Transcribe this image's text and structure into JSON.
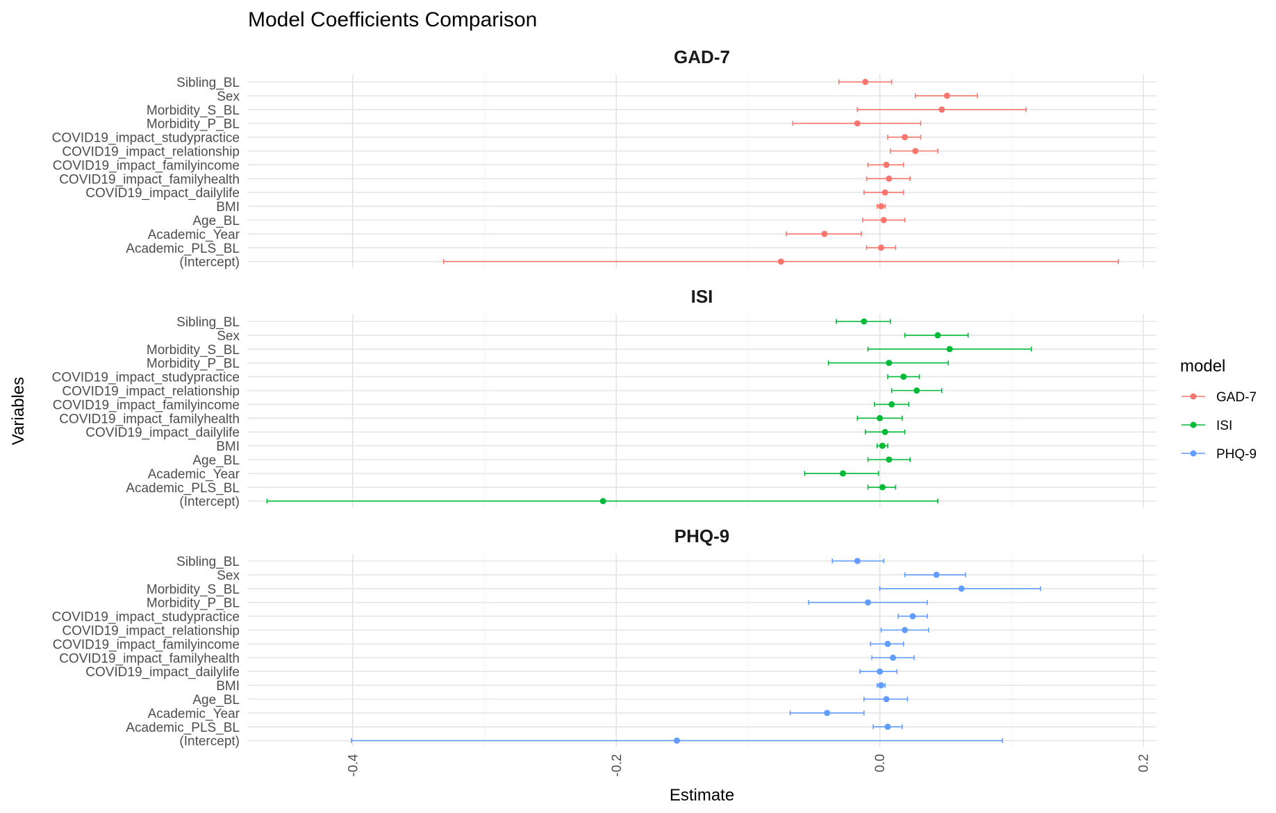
{
  "chart_data": {
    "type": "scatter",
    "title": "Model Coefficients Comparison",
    "xlabel": "Estimate",
    "ylabel": "Variables",
    "xlim": [
      -0.48,
      0.21
    ],
    "x_ticks": [
      -0.4,
      -0.2,
      0.0,
      0.2
    ],
    "x_tick_labels": [
      "-0.4",
      "-0.2",
      "0.0",
      "0.2"
    ],
    "x_minor_ticks": [
      -0.3,
      -0.1,
      0.1
    ],
    "grid": true,
    "legend": {
      "title": "model",
      "placement": "right"
    },
    "variables": [
      "Sibling_BL",
      "Sex",
      "Morbidity_S_BL",
      "Morbidity_P_BL",
      "COVID19_impact_studypractice",
      "COVID19_impact_relationship",
      "COVID19_impact_familyincome",
      "COVID19_impact_familyhealth",
      "COVID19_impact_dailylife",
      "BMI",
      "Age_BL",
      "Academic_Year",
      "Academic_PLS_BL",
      "(Intercept)"
    ],
    "series": [
      {
        "name": "GAD-7",
        "color": "#F8766D",
        "estimate": [
          -0.011,
          0.051,
          0.047,
          -0.017,
          0.019,
          0.027,
          0.005,
          0.007,
          0.004,
          0.001,
          0.003,
          -0.042,
          0.001,
          -0.075
        ],
        "ci_low": [
          -0.031,
          0.027,
          -0.017,
          -0.066,
          0.006,
          0.008,
          -0.009,
          -0.01,
          -0.012,
          -0.002,
          -0.013,
          -0.071,
          -0.01,
          -0.331
        ],
        "ci_high": [
          0.009,
          0.074,
          0.111,
          0.031,
          0.031,
          0.044,
          0.018,
          0.023,
          0.018,
          0.004,
          0.019,
          -0.014,
          0.012,
          0.181
        ]
      },
      {
        "name": "ISI",
        "color": "#00BA38",
        "estimate": [
          -0.012,
          0.044,
          0.053,
          0.007,
          0.018,
          0.028,
          0.009,
          0.0,
          0.004,
          0.002,
          0.007,
          -0.028,
          0.002,
          -0.21
        ],
        "ci_low": [
          -0.033,
          0.019,
          -0.009,
          -0.039,
          0.006,
          0.009,
          -0.004,
          -0.017,
          -0.011,
          -0.002,
          -0.009,
          -0.057,
          -0.009,
          -0.465
        ],
        "ci_high": [
          0.008,
          0.067,
          0.115,
          0.052,
          0.03,
          0.047,
          0.022,
          0.017,
          0.019,
          0.006,
          0.023,
          -0.001,
          0.012,
          0.044
        ]
      },
      {
        "name": "PHQ-9",
        "color": "#619CFF",
        "estimate": [
          -0.017,
          0.043,
          0.062,
          -0.009,
          0.025,
          0.019,
          0.006,
          0.01,
          0.0,
          0.001,
          0.005,
          -0.04,
          0.006,
          -0.154
        ],
        "ci_low": [
          -0.036,
          0.019,
          0.0,
          -0.054,
          0.014,
          0.001,
          -0.007,
          -0.006,
          -0.015,
          -0.002,
          -0.012,
          -0.068,
          -0.005,
          -0.401
        ],
        "ci_high": [
          0.003,
          0.065,
          0.122,
          0.036,
          0.036,
          0.037,
          0.018,
          0.026,
          0.013,
          0.004,
          0.021,
          -0.012,
          0.017,
          0.093
        ]
      }
    ]
  }
}
